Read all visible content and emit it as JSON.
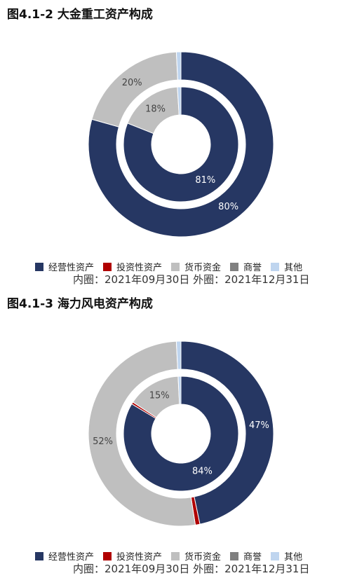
{
  "colors": {
    "operating": "#263763",
    "investment": "#b00000",
    "cash": "#bfbfbf",
    "goodwill": "#808080",
    "other": "#bfd5ef"
  },
  "chart_data": [
    {
      "type": "pie",
      "variant": "double-donut",
      "title": "图4.1-2 大金重工资产构成",
      "categories": [
        "经营性资产",
        "投资性资产",
        "货币资金",
        "商誉",
        "其他"
      ],
      "series": [
        {
          "values": [
            81,
            0,
            18,
            0,
            1
          ],
          "labels": [
            "81%",
            "",
            "18%",
            "",
            ""
          ]
        },
        {
          "values": [
            80,
            0,
            20,
            0,
            0.8
          ],
          "labels": [
            "80%",
            "",
            "20%",
            "",
            ""
          ]
        }
      ],
      "note": "内圈：2021年09月30日 外圈：2021年12月31日",
      "legend_position": "bottom"
    },
    {
      "type": "pie",
      "variant": "double-donut",
      "title": "图4.1-3 海力风电资产构成",
      "categories": [
        "经营性资产",
        "投资性资产",
        "货币资金",
        "商誉",
        "其他"
      ],
      "series": [
        {
          "values": [
            84,
            0.6,
            15,
            0,
            0.8
          ],
          "labels": [
            "84%",
            "",
            "15%",
            "",
            ""
          ]
        },
        {
          "values": [
            47,
            0.8,
            52,
            0,
            0.8
          ],
          "labels": [
            "47%",
            "",
            "52%",
            "",
            ""
          ]
        }
      ],
      "note": "内圈：2021年09月30日 外圈：2021年12月31日",
      "legend_position": "bottom"
    }
  ]
}
